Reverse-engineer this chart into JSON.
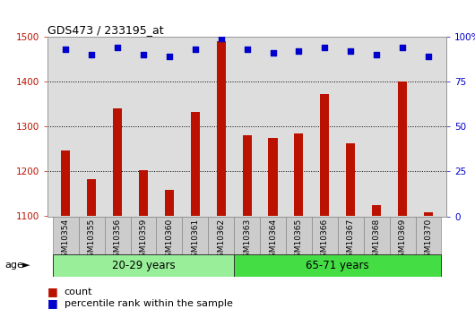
{
  "title": "GDS473 / 233195_at",
  "categories": [
    "GSM10354",
    "GSM10355",
    "GSM10356",
    "GSM10359",
    "GSM10360",
    "GSM10361",
    "GSM10362",
    "GSM10363",
    "GSM10364",
    "GSM10365",
    "GSM10366",
    "GSM10367",
    "GSM10368",
    "GSM10369",
    "GSM10370"
  ],
  "counts": [
    1247,
    1183,
    1340,
    1202,
    1158,
    1332,
    1490,
    1280,
    1274,
    1285,
    1372,
    1263,
    1125,
    1400,
    1108
  ],
  "percentile_ranks": [
    93,
    90,
    94,
    90,
    89,
    93,
    99,
    93,
    91,
    92,
    94,
    92,
    90,
    94,
    89
  ],
  "n_group1": 7,
  "n_group2": 8,
  "group_label1": "20-29 years",
  "group_label2": "65-71 years",
  "group_color1": "#99ee99",
  "group_color2": "#44dd44",
  "bar_color": "#bb1100",
  "dot_color": "#0000cc",
  "ylim_left": [
    1100,
    1500
  ],
  "ylim_right": [
    0,
    100
  ],
  "yticks_left": [
    1100,
    1200,
    1300,
    1400,
    1500
  ],
  "yticks_right": [
    0,
    25,
    50,
    75,
    100
  ],
  "grid_lines": [
    1200,
    1300,
    1400
  ],
  "plot_bg": "#dddddd",
  "tick_bg": "#cccccc",
  "age_label": "age",
  "legend_count_label": "count",
  "legend_pct_label": "percentile rank within the sample"
}
